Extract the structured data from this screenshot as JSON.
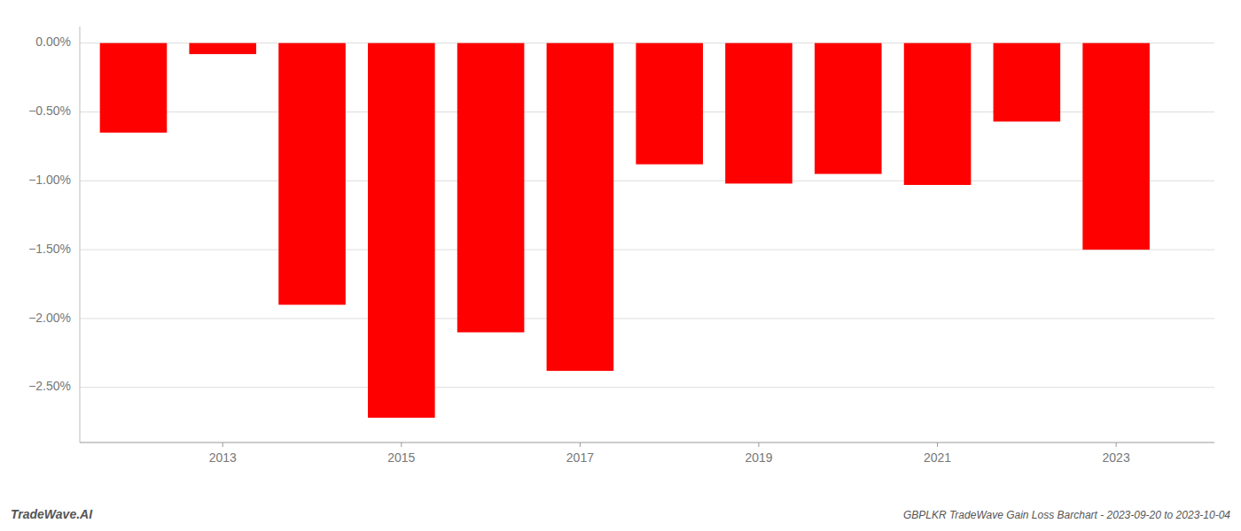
{
  "chart_data": {
    "type": "bar",
    "title": "GBPLKR TradeWave Gain Loss Barchart - 2023-09-20 to 2023-10-04",
    "annotations": [
      "TradeWave.AI"
    ],
    "x": [
      2012,
      2013,
      2014,
      2015,
      2016,
      2017,
      2018,
      2019,
      2020,
      2021,
      2022,
      2023
    ],
    "values": [
      -0.65,
      -0.08,
      -1.9,
      -2.72,
      -2.1,
      -2.38,
      -0.88,
      -1.02,
      -0.95,
      -1.03,
      -0.57,
      -1.5
    ],
    "color": "#ff0000",
    "xlim": [
      2011.4,
      2024.1
    ],
    "xticks": [
      2013,
      2015,
      2017,
      2019,
      2021,
      2023
    ],
    "ylim": [
      -2.9,
      0.12
    ],
    "yticks": [
      {
        "value": 0.0,
        "label": "0.00%"
      },
      {
        "value": -0.5,
        "label": "−0.50%"
      },
      {
        "value": -1.0,
        "label": "−1.00%"
      },
      {
        "value": -1.5,
        "label": "−1.50%"
      },
      {
        "value": -2.0,
        "label": "−2.00%"
      },
      {
        "value": -2.5,
        "label": "−2.50%"
      }
    ],
    "grid": true
  }
}
